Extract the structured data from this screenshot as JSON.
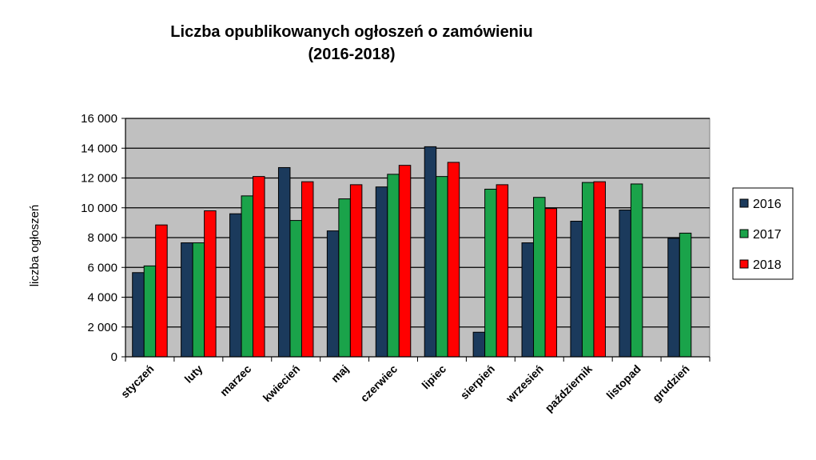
{
  "chart_data": {
    "type": "bar",
    "title_lines": [
      "Liczba opublikowanych ogłoszeń o zamówieniu",
      "(2016-2018)"
    ],
    "xlabel": "",
    "ylabel": "liczba ogłoszeń",
    "ylim": [
      0,
      16000
    ],
    "yticks": [
      0,
      2000,
      4000,
      6000,
      8000,
      10000,
      12000,
      14000,
      16000
    ],
    "ytick_labels": [
      "0",
      "2 000",
      "4 000",
      "6 000",
      "8 000",
      "10 000",
      "12 000",
      "14 000",
      "16 000"
    ],
    "grid": true,
    "legend_position": "right",
    "categories": [
      "styczeń",
      "luty",
      "marzec",
      "kwiecień",
      "maj",
      "czerwiec",
      "lipiec",
      "sierpień",
      "wrzesień",
      "październik",
      "listopad",
      "grudzień"
    ],
    "series": [
      {
        "name": "2016",
        "color": "#1b3a5c",
        "values": [
          5650,
          7650,
          9600,
          12700,
          8450,
          11400,
          14100,
          1650,
          7650,
          9100,
          9850,
          7950
        ]
      },
      {
        "name": "2017",
        "color": "#1aa34a",
        "values": [
          6100,
          7650,
          10800,
          9150,
          10600,
          12250,
          12100,
          11250,
          10700,
          11700,
          11600,
          8300
        ]
      },
      {
        "name": "2018",
        "color": "#ff0000",
        "values": [
          8850,
          9800,
          12100,
          11750,
          11550,
          12850,
          13050,
          11550,
          9950,
          11750,
          null,
          null
        ]
      }
    ],
    "plot_background": "#c0c0c0"
  }
}
